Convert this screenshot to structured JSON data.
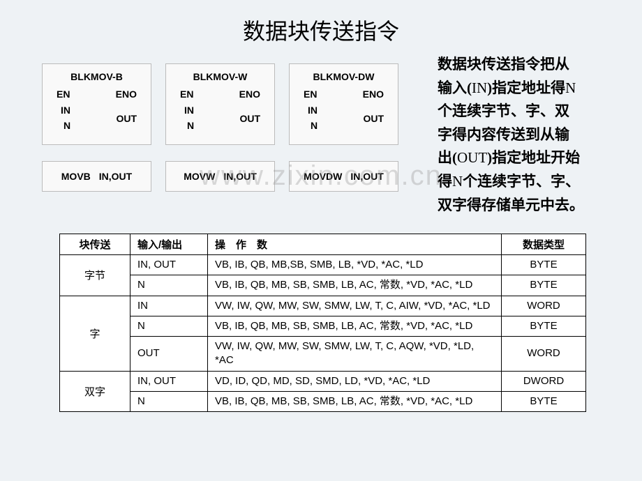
{
  "title": "数据块传送指令",
  "blocks": [
    {
      "title": "BLKMOV-B",
      "en": "EN",
      "eno": "ENO",
      "in": "IN",
      "n": "N",
      "out": "OUT"
    },
    {
      "title": "BLKMOV-W",
      "en": "EN",
      "eno": "ENO",
      "in": "IN",
      "n": "N",
      "out": "OUT"
    },
    {
      "title": "BLKMOV-DW",
      "en": "EN",
      "eno": "ENO",
      "in": "IN",
      "n": "N",
      "out": "OUT"
    }
  ],
  "instructions": [
    {
      "op": "MOVB",
      "args": "IN,OUT"
    },
    {
      "op": "MOVW",
      "args": "IN,OUT"
    },
    {
      "op": "MOVDW",
      "args": "IN,OUT"
    }
  ],
  "sidetext": {
    "l1a": "数据块传送指令把从",
    "l2a": "输入(",
    "l2b": "IN",
    "l2c": ")指定地址得",
    "l2d": "N",
    "l3": "个连续字节、字、双",
    "l4": "字得内容传送到从输",
    "l5a": "出(",
    "l5b": "OUT",
    "l5c": ")指定地址开始",
    "l6a": "得",
    "l6b": "N",
    "l6c": "个连续字节、字、",
    "l7": "双字得存储单元中去。"
  },
  "watermark": "www.zixin.com.cn",
  "tableHeaders": {
    "block": "块传送",
    "io": "输入/输出",
    "ops": "操　作　数",
    "type": "数据类型"
  },
  "rows": {
    "byte": {
      "label": "字节",
      "r1": {
        "io": "IN, OUT",
        "ops": "VB, IB, QB, MB,SB, SMB, LB, *VD, *AC, *LD",
        "type": "BYTE"
      },
      "r2": {
        "io": "N",
        "ops": "VB, IB, QB, MB, SB, SMB, LB, AC, 常数, *VD, *AC, *LD",
        "type": "BYTE"
      }
    },
    "word": {
      "label": "字",
      "r1": {
        "io": "IN",
        "ops": "VW, IW, QW, MW, SW, SMW, LW, T, C, AIW, *VD, *AC, *LD",
        "type": "WORD"
      },
      "r2": {
        "io": "N",
        "ops": "VB, IB, QB, MB, SB, SMB, LB, AC, 常数, *VD, *AC, *LD",
        "type": "BYTE"
      },
      "r3": {
        "io": "OUT",
        "ops": "VW, IW, QW, MW, SW, SMW, LW, T, C, AQW, *VD, *LD, *AC",
        "type": "WORD"
      }
    },
    "dword": {
      "label": "双字",
      "r1": {
        "io": "IN, OUT",
        "ops": "VD, ID, QD, MD, SD, SMD, LD, *VD, *AC, *LD",
        "type": "DWORD"
      },
      "r2": {
        "io": "N",
        "ops": "VB, IB, QB, MB, SB, SMB, LB, AC, 常数, *VD, *AC, *LD",
        "type": "BYTE"
      }
    }
  }
}
